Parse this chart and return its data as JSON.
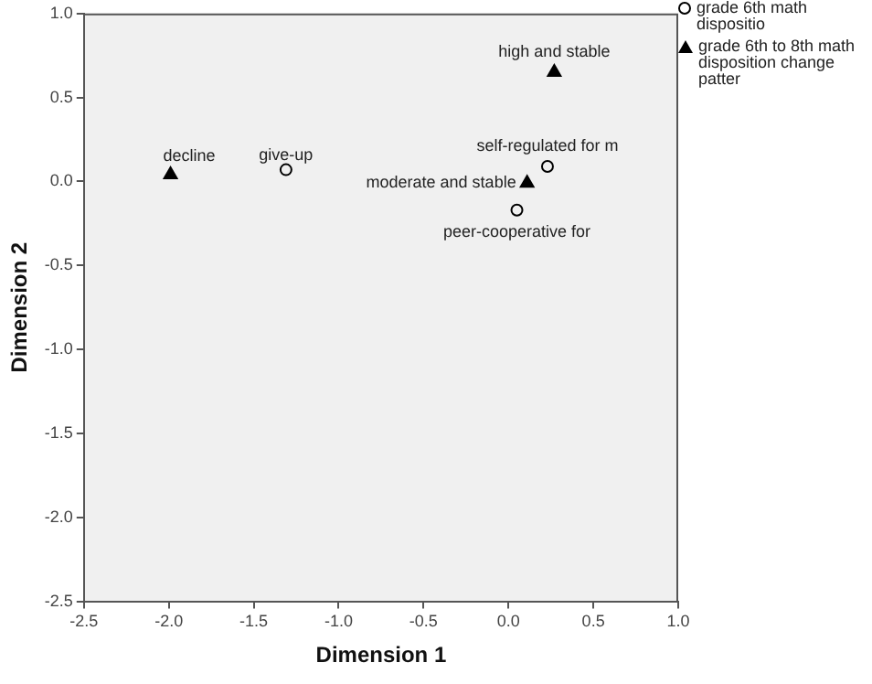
{
  "chart_data": {
    "type": "scatter",
    "xlabel": "Dimension 1",
    "ylabel": "Dimension 2",
    "xlim": [
      -2.5,
      1.0
    ],
    "ylim": [
      -2.5,
      1.0
    ],
    "xticks": [
      {
        "value": -2.5,
        "label": "-2.5"
      },
      {
        "value": -2.0,
        "label": "-2.0"
      },
      {
        "value": -1.5,
        "label": "-1.5"
      },
      {
        "value": -1.0,
        "label": "-1.0"
      },
      {
        "value": -0.5,
        "label": "-0.5"
      },
      {
        "value": 0,
        "label": "0.0"
      },
      {
        "value": 0.5,
        "label": "0.5"
      },
      {
        "value": 1.0,
        "label": "1.0"
      }
    ],
    "yticks": [
      {
        "value": -2.5,
        "label": "-2.5"
      },
      {
        "value": -2.0,
        "label": "-2.0"
      },
      {
        "value": -1.5,
        "label": "-1.5"
      },
      {
        "value": -1.0,
        "label": "-1.0"
      },
      {
        "value": -0.5,
        "label": "-0.5"
      },
      {
        "value": 0,
        "label": "0.0"
      },
      {
        "value": 0.5,
        "label": "0.5"
      },
      {
        "value": 1.0,
        "label": "1.0"
      }
    ],
    "grid": false,
    "legend": "top right",
    "series": [
      {
        "name": "grade 6th math dispositio",
        "color": "#000000",
        "marker": "circle",
        "x": [
          -1.31,
          0.23,
          0.05
        ],
        "values": [
          0.07,
          0.09,
          -0.17
        ]
      },
      {
        "name": "grade 6th to 8th math disposition change patter",
        "color": "#000000",
        "marker": "triangle",
        "x": [
          -1.99,
          0.27,
          0.11
        ],
        "values": [
          0.04,
          0.65,
          -0.01
        ]
      }
    ],
    "annotations": [
      {
        "text": "give-up",
        "x": -1.31,
        "y": 0.07
      },
      {
        "text": "self-regulated for m",
        "x": 0.23,
        "y": 0.09
      },
      {
        "text": "peer-cooperative for",
        "x": 0.05,
        "y": -0.17
      },
      {
        "text": "decline",
        "x": -1.99,
        "y": 0.04
      },
      {
        "text": "high and stable",
        "x": 0.27,
        "y": 0.65
      },
      {
        "text": "moderate and stable",
        "x": 0.11,
        "y": -0.01
      }
    ]
  }
}
